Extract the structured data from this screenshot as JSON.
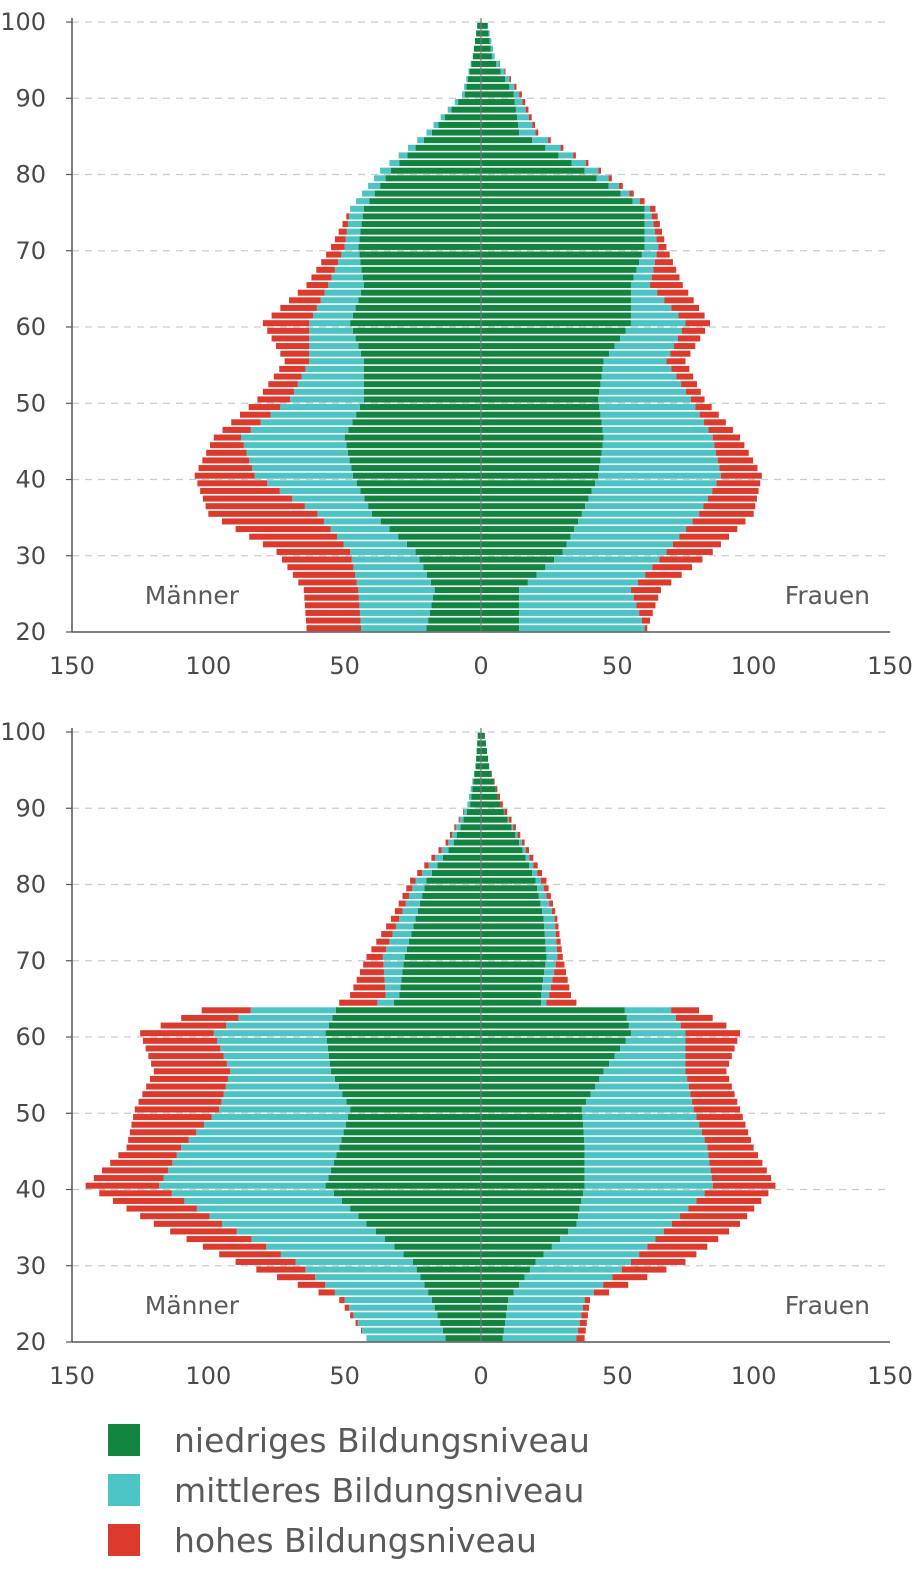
{
  "chart_data": [
    {
      "type": "bar",
      "orientation": "population-pyramid",
      "left_label": "Männer",
      "right_label": "Frauen",
      "xlim": [
        -150,
        150
      ],
      "ylim": [
        20,
        100
      ],
      "x_ticks": [
        "150",
        "100",
        "50",
        "0",
        "50",
        "100",
        "150"
      ],
      "y_ticks": [
        "20",
        "30",
        "40",
        "50",
        "60",
        "70",
        "80",
        "90",
        "100"
      ],
      "grid": "horizontal dashed",
      "maenner": {
        "ages": [
          20,
          25,
          30,
          35,
          40,
          45,
          50,
          55,
          60,
          65,
          70,
          75,
          80,
          85,
          90,
          95,
          100
        ],
        "low": [
          20,
          17,
          24,
          40,
          47,
          50,
          43,
          43,
          48,
          43,
          45,
          43,
          33,
          18,
          6,
          3,
          1
        ],
        "mid": [
          44,
          45,
          48,
          60,
          83,
          88,
          70,
          63,
          63,
          56,
          50,
          48,
          37,
          20,
          7,
          3,
          1
        ],
        "total": [
          64,
          65,
          75,
          100,
          105,
          98,
          82,
          72,
          80,
          64,
          55,
          48,
          37,
          20,
          7,
          3,
          1
        ]
      },
      "frauen": {
        "ages": [
          20,
          25,
          30,
          35,
          40,
          45,
          50,
          55,
          60,
          65,
          70,
          75,
          80,
          85,
          90,
          95,
          100
        ],
        "low": [
          14,
          14,
          30,
          37,
          43,
          45,
          43,
          45,
          55,
          55,
          60,
          60,
          38,
          14,
          12,
          4,
          2
        ],
        "mid": [
          60,
          55,
          68,
          80,
          88,
          85,
          77,
          68,
          75,
          62,
          65,
          62,
          43,
          20,
          14,
          5,
          2
        ],
        "total": [
          61,
          66,
          85,
          100,
          103,
          95,
          82,
          75,
          84,
          74,
          68,
          64,
          44,
          21,
          15,
          5,
          2
        ]
      }
    },
    {
      "type": "bar",
      "orientation": "population-pyramid",
      "left_label": "Männer",
      "right_label": "Frauen",
      "xlim": [
        -150,
        150
      ],
      "ylim": [
        20,
        100
      ],
      "x_ticks": [
        "150",
        "100",
        "50",
        "0",
        "50",
        "100",
        "150"
      ],
      "y_ticks": [
        "20",
        "30",
        "40",
        "50",
        "60",
        "70",
        "80",
        "90",
        "100"
      ],
      "grid": "horizontal dashed",
      "maenner": {
        "ages": [
          20,
          25,
          30,
          35,
          40,
          45,
          50,
          55,
          60,
          63.99,
          64,
          65,
          70,
          75,
          80,
          85,
          90,
          95,
          100
        ],
        "low": [
          13,
          18,
          25,
          42,
          57,
          52,
          48,
          55,
          57,
          52,
          32,
          30,
          28,
          24,
          20,
          10,
          4,
          2,
          1
        ],
        "mid": [
          42,
          50,
          68,
          95,
          118,
          110,
          96,
          92,
          98,
          80,
          38,
          35,
          36,
          30,
          24,
          12,
          5,
          2,
          1
        ],
        "total": [
          42,
          52,
          90,
          120,
          145,
          130,
          127,
          120,
          125,
          95,
          52,
          48,
          42,
          33,
          26,
          13,
          5,
          2,
          1
        ]
      },
      "frauen": {
        "ages": [
          20,
          25,
          30,
          35,
          40,
          45,
          50,
          55,
          60,
          63.99,
          64,
          65,
          70,
          75,
          80,
          85,
          90,
          95,
          100
        ],
        "low": [
          8,
          10,
          20,
          35,
          38,
          38,
          37,
          45,
          55,
          52,
          22,
          22,
          24,
          23,
          20,
          14,
          7,
          3,
          1
        ],
        "mid": [
          35,
          38,
          55,
          70,
          85,
          83,
          78,
          75,
          75,
          68,
          24,
          25,
          28,
          27,
          22,
          15,
          7,
          3,
          1
        ],
        "total": [
          38,
          40,
          75,
          95,
          108,
          100,
          95,
          90,
          95,
          75,
          35,
          33,
          30,
          28,
          24,
          16,
          8,
          3,
          1
        ]
      }
    }
  ],
  "legend": [
    {
      "label": "niedriges Bildungsniveau",
      "color": "#118540"
    },
    {
      "label": "mittleres Bildungsniveau",
      "color": "#4cc3c4"
    },
    {
      "label": "hohes Bildungsniveau",
      "color": "#dc3a2d"
    }
  ],
  "colors": {
    "low": "#118540",
    "mid": "#4cc3c4",
    "high": "#dc3a2d",
    "axis": "#555555",
    "grid": "#cccccc"
  }
}
